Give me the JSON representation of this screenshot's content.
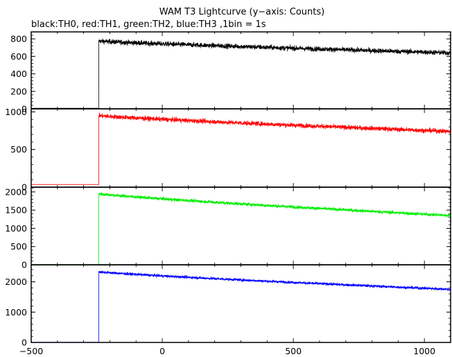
{
  "chart_data": {
    "type": "line",
    "title": "WAM T3 Lightcurve (y−axis: Counts)",
    "subtitle": "black:TH0, red:TH1, green:TH2, blue:TH3 ,1bin = 1s",
    "xlim": [
      -500,
      1100
    ],
    "x_ticks": [
      -500,
      0,
      500,
      1000
    ],
    "x_tick_labels": [
      "−500",
      "0",
      "500",
      "1000"
    ],
    "grid": false,
    "panels": [
      {
        "name": "TH0",
        "color": "#000000",
        "ylim": [
          0,
          880
        ],
        "y_ticks": [
          0,
          200,
          400,
          600,
          800
        ],
        "y_tick_labels": [
          "0",
          "200",
          "400",
          "600",
          "800"
        ],
        "baseline": 7,
        "onset_x": -242,
        "peak": 775,
        "end": 640,
        "noise": 28
      },
      {
        "name": "TH1",
        "color": "#ff0000",
        "ylim": [
          0,
          1040
        ],
        "y_ticks": [
          0,
          500,
          1000
        ],
        "y_tick_labels": [
          "0",
          "500",
          "1000"
        ],
        "baseline": 35,
        "onset_x": -242,
        "peak": 950,
        "end": 740,
        "noise": 30
      },
      {
        "name": "TH2",
        "color": "#00ee00",
        "ylim": [
          0,
          2130
        ],
        "y_ticks": [
          0,
          500,
          1000,
          1500,
          2000
        ],
        "y_tick_labels": [
          "0",
          "500",
          "1000",
          "1500",
          "2000"
        ],
        "baseline": 5,
        "onset_x": -242,
        "peak": 1950,
        "end": 1350,
        "noise": 45
      },
      {
        "name": "TH3",
        "color": "#0000ff",
        "ylim": [
          0,
          2560
        ],
        "y_ticks": [
          0,
          1000,
          2000
        ],
        "y_tick_labels": [
          "0",
          "1000",
          "2000"
        ],
        "baseline": 5,
        "onset_x": -242,
        "peak": 2330,
        "end": 1750,
        "noise": 45
      }
    ]
  }
}
